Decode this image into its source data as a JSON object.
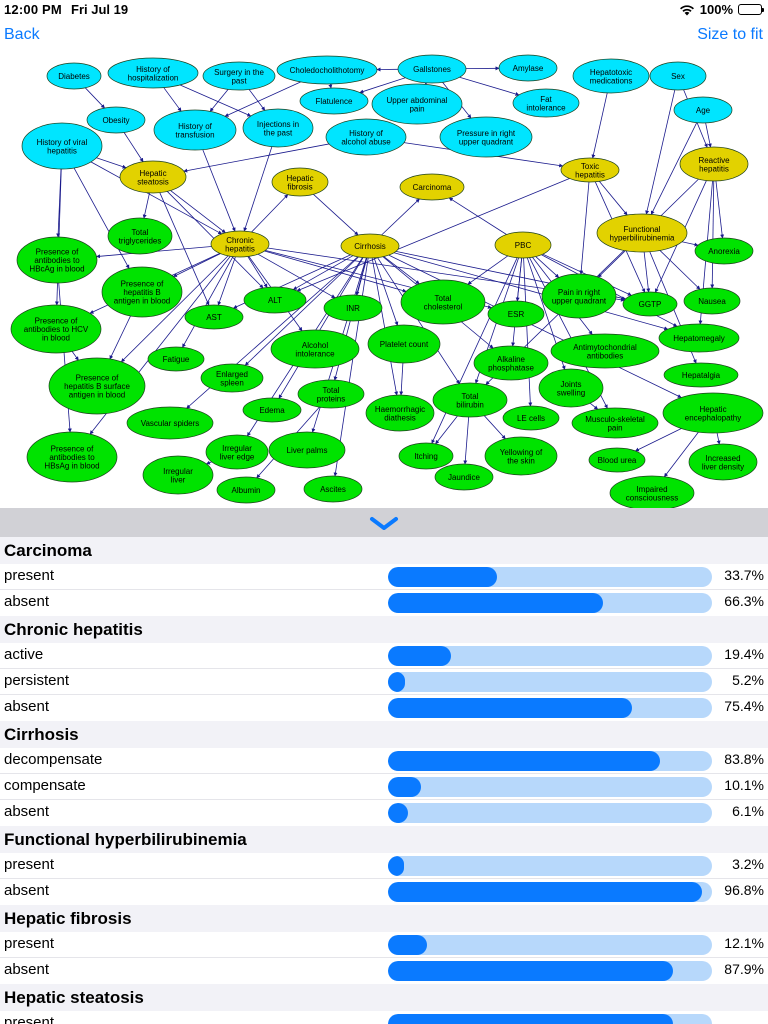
{
  "status_bar": {
    "time": "12:00 PM",
    "date": "Fri Jul 19",
    "battery": "100%"
  },
  "nav": {
    "back_label": "Back",
    "fit_label": "Size to fit"
  },
  "colors": {
    "accent": "#0a7aff",
    "cyan_node": "#00e5ff",
    "yellow_node": "#e2d200",
    "green_node": "#00e300",
    "edge": "#1a1a8c",
    "bar_fill": "#0a7aff",
    "bar_track": "#b7d8fb"
  },
  "graph": {
    "nodes": [
      {
        "id": "diabetes",
        "label": "Diabetes",
        "color": "cyan"
      },
      {
        "id": "hist_hosp",
        "label": "History of hospitalization",
        "color": "cyan"
      },
      {
        "id": "surgery",
        "label": "Surgery in the past",
        "color": "cyan"
      },
      {
        "id": "choledo",
        "label": "Choledocholithotomy",
        "color": "cyan"
      },
      {
        "id": "gallstones",
        "label": "Gallstones",
        "color": "cyan"
      },
      {
        "id": "amylase",
        "label": "Amylase",
        "color": "cyan"
      },
      {
        "id": "hepatotoxic",
        "label": "Hepatotoxic medications",
        "color": "cyan"
      },
      {
        "id": "sex",
        "label": "Sex",
        "color": "cyan"
      },
      {
        "id": "obesity",
        "label": "Obesity",
        "color": "cyan"
      },
      {
        "id": "flatulence",
        "label": "Flatulence",
        "color": "cyan"
      },
      {
        "id": "upper_abd",
        "label": "Upper abdominal pain",
        "color": "cyan"
      },
      {
        "id": "fat_intol",
        "label": "Fat intolerance",
        "color": "cyan"
      },
      {
        "id": "age",
        "label": "Age",
        "color": "cyan"
      },
      {
        "id": "hist_transf",
        "label": "History of transfusion",
        "color": "cyan"
      },
      {
        "id": "injections",
        "label": "Injections in the past",
        "color": "cyan"
      },
      {
        "id": "hist_alcohol",
        "label": "History of alcohol abuse",
        "color": "cyan"
      },
      {
        "id": "pressure_ruq",
        "label": "Pressure in right upper quadrant",
        "color": "cyan"
      },
      {
        "id": "hist_viral",
        "label": "History of viral hepatitis",
        "color": "cyan"
      },
      {
        "id": "hep_steatosis",
        "label": "Hepatic steatosis",
        "color": "yellow"
      },
      {
        "id": "hep_fibrosis",
        "label": "Hepatic fibrosis",
        "color": "yellow"
      },
      {
        "id": "carcinoma",
        "label": "Carcinoma",
        "color": "yellow"
      },
      {
        "id": "toxic_hep",
        "label": "Toxic hepatitis",
        "color": "yellow"
      },
      {
        "id": "reactive_hep",
        "label": "Reactive hepatitis",
        "color": "yellow"
      },
      {
        "id": "chronic_hep",
        "label": "Chronic hepatitis",
        "color": "yellow"
      },
      {
        "id": "cirrhosis",
        "label": "Cirrhosis",
        "color": "yellow"
      },
      {
        "id": "pbc",
        "label": "PBC",
        "color": "yellow"
      },
      {
        "id": "func_hyper",
        "label": "Functional hyperbilirubinemia",
        "color": "yellow"
      },
      {
        "id": "total_trig",
        "label": "Total triglycerides",
        "color": "green"
      },
      {
        "id": "hbcag",
        "label": "Presence of antibodies to HBcAg in blood",
        "color": "green"
      },
      {
        "id": "hbsag_antigen",
        "label": "Presence of hepatitis B antigen in blood",
        "color": "green"
      },
      {
        "id": "hcv",
        "label": "Presence of antibodies to HCV in blood",
        "color": "green"
      },
      {
        "id": "alt",
        "label": "ALT",
        "color": "green"
      },
      {
        "id": "ast",
        "label": "AST",
        "color": "green"
      },
      {
        "id": "inr",
        "label": "INR",
        "color": "green"
      },
      {
        "id": "total_chol",
        "label": "Total cholesterol",
        "color": "green"
      },
      {
        "id": "esr",
        "label": "ESR",
        "color": "green"
      },
      {
        "id": "pain_ruq",
        "label": "Pain in right upper quadrant",
        "color": "green"
      },
      {
        "id": "ggtp",
        "label": "GGTP",
        "color": "green"
      },
      {
        "id": "anorexia",
        "label": "Anorexia",
        "color": "green"
      },
      {
        "id": "nausea",
        "label": "Nausea",
        "color": "green"
      },
      {
        "id": "fatigue",
        "label": "Fatigue",
        "color": "green"
      },
      {
        "id": "alcohol_intol",
        "label": "Alcohol intolerance",
        "color": "green"
      },
      {
        "id": "platelet",
        "label": "Platelet count",
        "color": "green"
      },
      {
        "id": "alk_phos",
        "label": "Alkaline phosphatase",
        "color": "green"
      },
      {
        "id": "antimito",
        "label": "Antimytochondrial antibodies",
        "color": "green"
      },
      {
        "id": "hepatomegaly",
        "label": "Hepatomegaly",
        "color": "green"
      },
      {
        "id": "hbs_surface",
        "label": "Presence of hepatitis B surface antigen in blood",
        "color": "green"
      },
      {
        "id": "enlarged_spleen",
        "label": "Enlarged spleen",
        "color": "green"
      },
      {
        "id": "total_prot",
        "label": "Total proteins",
        "color": "green"
      },
      {
        "id": "joints",
        "label": "Joints swelling",
        "color": "green"
      },
      {
        "id": "hepatalgia",
        "label": "Hepatalgia",
        "color": "green"
      },
      {
        "id": "vasc_spiders",
        "label": "Vascular spiders",
        "color": "green"
      },
      {
        "id": "edema",
        "label": "Edema",
        "color": "green"
      },
      {
        "id": "haemorrhagic",
        "label": "Haemorrhagic diathesis",
        "color": "green"
      },
      {
        "id": "total_bili",
        "label": "Total bilirubin",
        "color": "green"
      },
      {
        "id": "le_cells",
        "label": "LE cells",
        "color": "green"
      },
      {
        "id": "musculo",
        "label": "Musculo-skeletal pain",
        "color": "green"
      },
      {
        "id": "hep_enceph",
        "label": "Hepatic encephalopathy",
        "color": "green"
      },
      {
        "id": "anti_hbsag",
        "label": "Presence of antibodies to HBsAg in blood",
        "color": "green"
      },
      {
        "id": "irreg_edge",
        "label": "Irregular liver edge",
        "color": "green"
      },
      {
        "id": "liver_palms",
        "label": "Liver palms",
        "color": "green"
      },
      {
        "id": "irreg_liver",
        "label": "Irregular liver",
        "color": "green"
      },
      {
        "id": "itching",
        "label": "Itching",
        "color": "green"
      },
      {
        "id": "yellowing",
        "label": "Yellowing of the skin",
        "color": "green"
      },
      {
        "id": "blood_urea",
        "label": "Blood urea",
        "color": "green"
      },
      {
        "id": "incr_density",
        "label": "Increased liver density",
        "color": "green"
      },
      {
        "id": "jaundice",
        "label": "Jaundice",
        "color": "green"
      },
      {
        "id": "albumin",
        "label": "Albumin",
        "color": "green"
      },
      {
        "id": "ascites",
        "label": "Ascites",
        "color": "green"
      },
      {
        "id": "impaired",
        "label": "Impaired consciousness",
        "color": "green"
      }
    ],
    "edges": [
      [
        "diabetes",
        "obesity"
      ],
      [
        "obesity",
        "hep_steatosis"
      ],
      [
        "hist_hosp",
        "hist_transf"
      ],
      [
        "hist_hosp",
        "injections"
      ],
      [
        "surgery",
        "hist_transf"
      ],
      [
        "surgery",
        "injections"
      ],
      [
        "choledo",
        "hist_transf"
      ],
      [
        "choledo",
        "flatulence"
      ],
      [
        "gallstones",
        "choledo"
      ],
      [
        "gallstones",
        "amylase"
      ],
      [
        "gallstones",
        "fat_intol"
      ],
      [
        "gallstones",
        "pressure_ruq"
      ],
      [
        "gallstones",
        "upper_abd"
      ],
      [
        "gallstones",
        "flatulence"
      ],
      [
        "hepatotoxic",
        "toxic_hep"
      ],
      [
        "sex",
        "reactive_hep"
      ],
      [
        "sex",
        "func_hyper"
      ],
      [
        "age",
        "reactive_hep"
      ],
      [
        "age",
        "func_hyper"
      ],
      [
        "hist_transf",
        "chronic_hep"
      ],
      [
        "injections",
        "chronic_hep"
      ],
      [
        "hist_alcohol",
        "hep_steatosis"
      ],
      [
        "hist_alcohol",
        "toxic_hep"
      ],
      [
        "hist_viral",
        "hep_steatosis"
      ],
      [
        "hist_viral",
        "hbcag"
      ],
      [
        "hist_viral",
        "hbsag_antigen"
      ],
      [
        "hist_viral",
        "hcv"
      ],
      [
        "hist_viral",
        "chronic_hep"
      ],
      [
        "hep_steatosis",
        "total_trig"
      ],
      [
        "hep_steatosis",
        "chronic_hep"
      ],
      [
        "hep_steatosis",
        "ast"
      ],
      [
        "hep_steatosis",
        "alt"
      ],
      [
        "hep_fibrosis",
        "cirrhosis"
      ],
      [
        "chronic_hep",
        "hep_fibrosis"
      ],
      [
        "chronic_hep",
        "hbcag"
      ],
      [
        "chronic_hep",
        "hbsag_antigen"
      ],
      [
        "chronic_hep",
        "hcv"
      ],
      [
        "chronic_hep",
        "alt"
      ],
      [
        "chronic_hep",
        "ast"
      ],
      [
        "chronic_hep",
        "inr"
      ],
      [
        "chronic_hep",
        "fatigue"
      ],
      [
        "chronic_hep",
        "hbs_surface"
      ],
      [
        "chronic_hep",
        "anti_hbsag"
      ],
      [
        "chronic_hep",
        "total_chol"
      ],
      [
        "chronic_hep",
        "esr"
      ],
      [
        "chronic_hep",
        "ggtp"
      ],
      [
        "chronic_hep",
        "alcohol_intol"
      ],
      [
        "cirrhosis",
        "carcinoma"
      ],
      [
        "cirrhosis",
        "alt"
      ],
      [
        "cirrhosis",
        "ast"
      ],
      [
        "cirrhosis",
        "inr"
      ],
      [
        "cirrhosis",
        "platelet"
      ],
      [
        "cirrhosis",
        "total_chol"
      ],
      [
        "cirrhosis",
        "alk_phos"
      ],
      [
        "cirrhosis",
        "enlarged_spleen"
      ],
      [
        "cirrhosis",
        "total_prot"
      ],
      [
        "cirrhosis",
        "vasc_spiders"
      ],
      [
        "cirrhosis",
        "edema"
      ],
      [
        "cirrhosis",
        "haemorrhagic"
      ],
      [
        "cirrhosis",
        "total_bili"
      ],
      [
        "cirrhosis",
        "irreg_edge"
      ],
      [
        "cirrhosis",
        "liver_palms"
      ],
      [
        "cirrhosis",
        "hepatomegaly"
      ],
      [
        "cirrhosis",
        "ggtp"
      ],
      [
        "cirrhosis",
        "hep_enceph"
      ],
      [
        "cirrhosis",
        "ascites"
      ],
      [
        "pbc",
        "carcinoma"
      ],
      [
        "pbc",
        "total_chol"
      ],
      [
        "pbc",
        "esr"
      ],
      [
        "pbc",
        "alk_phos"
      ],
      [
        "pbc",
        "antimito"
      ],
      [
        "pbc",
        "pain_ruq"
      ],
      [
        "pbc",
        "ggtp"
      ],
      [
        "pbc",
        "joints"
      ],
      [
        "pbc",
        "le_cells"
      ],
      [
        "pbc",
        "total_bili"
      ],
      [
        "pbc",
        "hepatomegaly"
      ],
      [
        "pbc",
        "musculo"
      ],
      [
        "pbc",
        "itching"
      ],
      [
        "toxic_hep",
        "func_hyper"
      ],
      [
        "toxic_hep",
        "pain_ruq"
      ],
      [
        "toxic_hep",
        "alt"
      ],
      [
        "toxic_hep",
        "ggtp"
      ],
      [
        "reactive_hep",
        "anorexia"
      ],
      [
        "reactive_hep",
        "nausea"
      ],
      [
        "reactive_hep",
        "hepatomegaly"
      ],
      [
        "reactive_hep",
        "pain_ruq"
      ],
      [
        "reactive_hep",
        "ggtp"
      ],
      [
        "func_hyper",
        "total_bili"
      ],
      [
        "func_hyper",
        "anorexia"
      ],
      [
        "func_hyper",
        "nausea"
      ],
      [
        "func_hyper",
        "hepatalgia"
      ],
      [
        "func_hyper",
        "ggtp"
      ],
      [
        "total_bili",
        "jaundice"
      ],
      [
        "total_bili",
        "yellowing"
      ],
      [
        "total_bili",
        "itching"
      ],
      [
        "hep_enceph",
        "blood_urea"
      ],
      [
        "hep_enceph",
        "incr_density"
      ],
      [
        "hep_enceph",
        "impaired"
      ],
      [
        "total_prot",
        "albumin"
      ],
      [
        "irreg_edge",
        "irreg_liver"
      ],
      [
        "hbsag_antigen",
        "hbs_surface"
      ],
      [
        "hcv",
        "hbs_surface"
      ],
      [
        "hbcag",
        "anti_hbsag"
      ],
      [
        "joints",
        "musculo"
      ],
      [
        "platelet",
        "haemorrhagic"
      ]
    ]
  },
  "panel": {
    "collapse_icon": "chevron-down-icon",
    "groups": [
      {
        "name": "Carcinoma",
        "states": [
          {
            "label": "present",
            "value": 33.7,
            "text": "33.7%"
          },
          {
            "label": "absent",
            "value": 66.3,
            "text": "66.3%"
          }
        ]
      },
      {
        "name": "Chronic hepatitis",
        "states": [
          {
            "label": "active",
            "value": 19.4,
            "text": "19.4%"
          },
          {
            "label": "persistent",
            "value": 5.2,
            "text": "5.2%"
          },
          {
            "label": "absent",
            "value": 75.4,
            "text": "75.4%"
          }
        ]
      },
      {
        "name": "Cirrhosis",
        "states": [
          {
            "label": "decompensate",
            "value": 83.8,
            "text": "83.8%"
          },
          {
            "label": "compensate",
            "value": 10.1,
            "text": "10.1%"
          },
          {
            "label": "absent",
            "value": 6.1,
            "text": "6.1%"
          }
        ]
      },
      {
        "name": "Functional hyperbilirubinemia",
        "states": [
          {
            "label": "present",
            "value": 3.2,
            "text": "3.2%"
          },
          {
            "label": "absent",
            "value": 96.8,
            "text": "96.8%"
          }
        ]
      },
      {
        "name": "Hepatic fibrosis",
        "states": [
          {
            "label": "present",
            "value": 12.1,
            "text": "12.1%"
          },
          {
            "label": "absent",
            "value": 87.9,
            "text": "87.9%"
          }
        ]
      },
      {
        "name": "Hepatic steatosis",
        "states": [
          {
            "label": "present",
            "value": 88.0,
            "text": ""
          }
        ]
      }
    ]
  }
}
